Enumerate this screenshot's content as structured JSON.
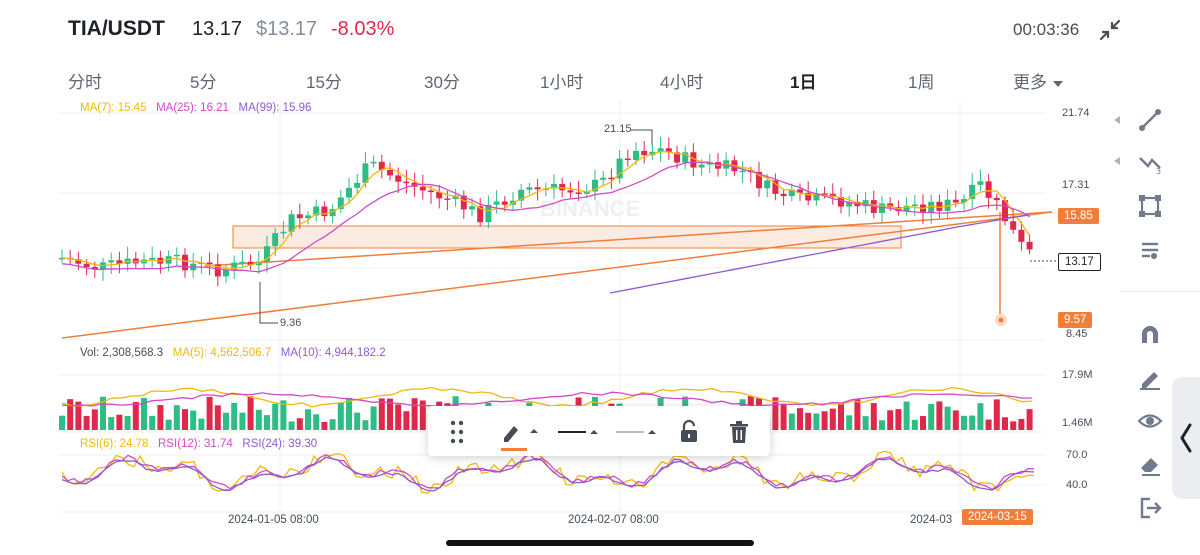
{
  "header": {
    "pair": "TIA/USDT",
    "price": "13.17",
    "price_usd": "$13.17",
    "change": "-8.03%",
    "timer": "00:03:36",
    "collapse_icon": "collapse-arrows-icon"
  },
  "tabs": [
    {
      "label": "分时"
    },
    {
      "label": "5分"
    },
    {
      "label": "15分"
    },
    {
      "label": "30分"
    },
    {
      "label": "1小时"
    },
    {
      "label": "4小时"
    },
    {
      "label": "1日",
      "active": true
    },
    {
      "label": "1周"
    },
    {
      "label": "更多"
    }
  ],
  "price_panel": {
    "ma7": "MA(7): 15.45",
    "ma25": "MA(25): 16.21",
    "ma99": "MA(99): 15.96",
    "axis": [
      "21.74",
      "17.31",
      "8.45"
    ],
    "high_label": "21.15",
    "low_label": "9.36",
    "tag_15": "15.85",
    "tag_current": "13.17",
    "tag_low": "9.57",
    "watermark": "BINANCE"
  },
  "volume_panel": {
    "vol": "Vol: 2,308,568.3",
    "ma5": "MA(5): 4,562,506.7",
    "ma10": "MA(10): 4,944,182.2",
    "axis": [
      "17.9M",
      "1.46M"
    ]
  },
  "rsi_panel": {
    "rsi6": "RSI(6): 24.78",
    "rsi12": "RSI(12): 31.74",
    "rsi24": "RSI(24): 39.30",
    "axis": [
      "70.0",
      "40.0"
    ]
  },
  "dates": [
    "2024-01-05 08:00",
    "2024-02-07 08:00",
    "2024-03",
    "2024-03-15"
  ],
  "colors": {
    "up": "#2ebd85",
    "down": "#e0294a",
    "ma7": "#f0b90b",
    "ma25": "#d24ac7",
    "ma99": "#8e5bd0",
    "accent": "#ef7f3a"
  },
  "sidebar_tools": [
    "line-tool-icon",
    "fib-tool-icon",
    "rectangle-tool-icon",
    "settings-tool-icon",
    "magnet-icon",
    "pencil-eraser-icon",
    "eye-icon",
    "eraser-icon",
    "exit-icon"
  ],
  "drawbar": [
    "grid-handle-icon",
    "pen-color-icon",
    "line-style-icon",
    "line-width-icon",
    "unlock-icon",
    "trash-icon"
  ]
}
